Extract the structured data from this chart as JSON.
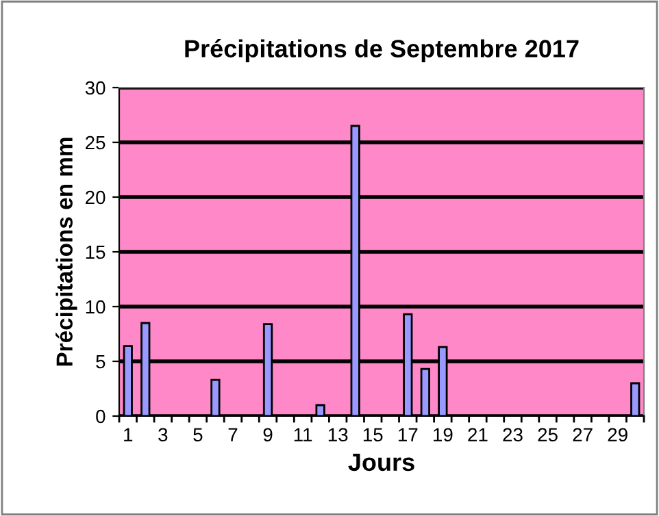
{
  "chart_data": {
    "type": "bar",
    "title": "Précipitations de Septembre 2017",
    "xlabel": "Jours",
    "ylabel": "Précipitations en mm",
    "categories": [
      "1",
      null,
      "3",
      null,
      "5",
      null,
      "7",
      null,
      "9",
      null,
      "11",
      null,
      "13",
      null,
      "15",
      null,
      "17",
      null,
      "19",
      null,
      "21",
      null,
      "23",
      null,
      "25",
      null,
      "27",
      null,
      "29",
      null
    ],
    "values": [
      6.4,
      8.5,
      0,
      0,
      0,
      3.3,
      0,
      0,
      8.4,
      0,
      0,
      1.0,
      0,
      26.5,
      0,
      0,
      9.3,
      4.3,
      6.3,
      0,
      0,
      0,
      0,
      0,
      0,
      0,
      0,
      0,
      0,
      3.0
    ],
    "color": "#9999ff",
    "ylim": [
      0,
      30
    ],
    "yticks": [
      0,
      5,
      10,
      15,
      20,
      25,
      30
    ],
    "grid": "y",
    "legend": false
  }
}
